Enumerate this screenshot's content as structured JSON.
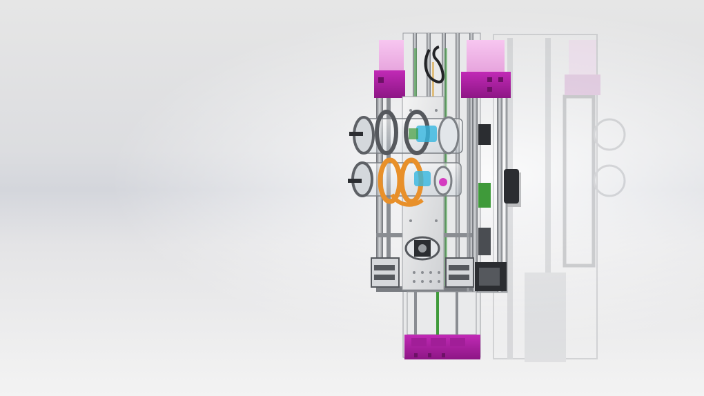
{
  "scene": {
    "subject": "robot-cad-render",
    "colors": {
      "background_top": "#e6e6e6",
      "background_band": "#d4d6dc",
      "background_bottom": "#f3f3f3",
      "accent_magenta": "#b01fa6",
      "accent_pink": "#f0b6e8",
      "wheel_orange": "#e8902a",
      "hub_cyan": "#35b6e0",
      "hub_magenta": "#d43bc0",
      "green_part": "#3f9a3a",
      "frame_gray": "#8a8d92",
      "dark_part": "#2b2d31"
    }
  }
}
